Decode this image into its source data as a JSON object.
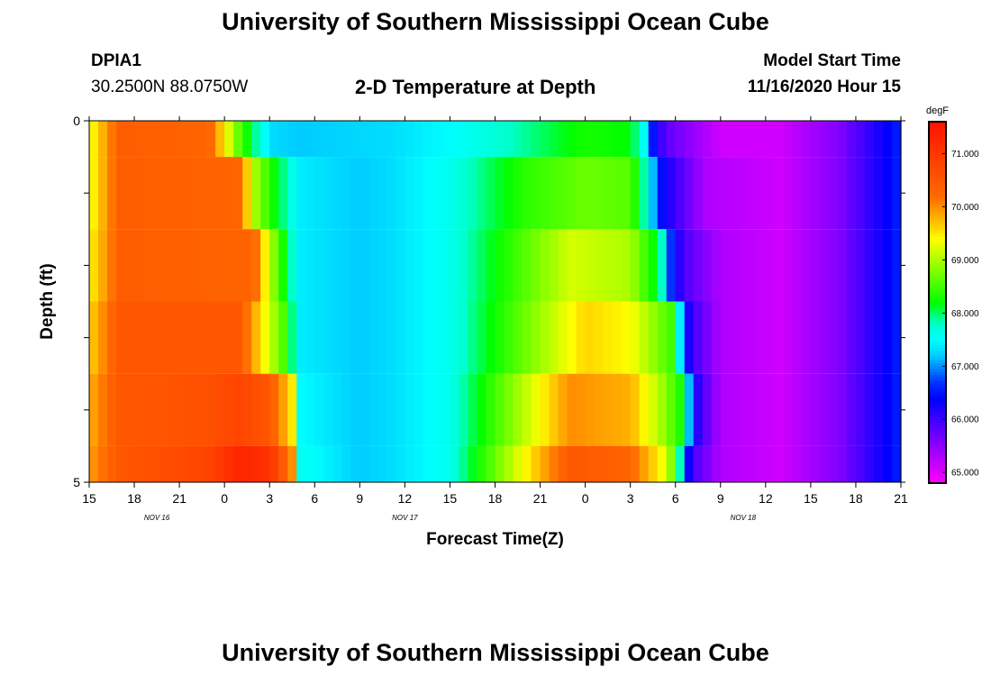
{
  "header": {
    "title_top": "University of Southern Mississippi Ocean Cube",
    "station_id": "DPIA1",
    "coords": "30.2500N 88.0750W",
    "subtitle": "2-D Temperature at Depth",
    "model_label": "Model Start Time",
    "model_time": "11/16/2020 Hour 15",
    "title_bottom": "University of Southern Mississippi Ocean Cube"
  },
  "chart_data": {
    "type": "heatmap",
    "title": "2-D Temperature at Depth",
    "xlabel": "Forecast Time(Z)",
    "ylabel": "Depth (ft)",
    "x_tick_labels": [
      "15",
      "18",
      "21",
      "0",
      "3",
      "6",
      "9",
      "12",
      "15",
      "18",
      "21",
      "0",
      "3",
      "6",
      "9",
      "12",
      "15",
      "18",
      "21"
    ],
    "date_labels": [
      "NOV 16",
      "NOV 17",
      "NOV 18"
    ],
    "x_range_hours": [
      0,
      54
    ],
    "y_range_ft": [
      0,
      5
    ],
    "y_tick_labels": [
      "0",
      "5"
    ],
    "colorbar": {
      "unit": "degF",
      "min": 64.8,
      "max": 71.6,
      "tick_labels": [
        "71.000",
        "70.000",
        "69.000",
        "68.000",
        "67.000",
        "66.000",
        "65.000"
      ],
      "tick_values": [
        71,
        70,
        69,
        68,
        67,
        66,
        65
      ]
    },
    "depth_levels_ft": [
      0,
      0.5,
      1.5,
      2.5,
      3.5,
      4.5
    ],
    "profiles": [
      {
        "depth_ft": 0,
        "points": [
          [
            0,
            69.3
          ],
          [
            2,
            70.4
          ],
          [
            8,
            70.3
          ],
          [
            9,
            69.5
          ],
          [
            10,
            68.6
          ],
          [
            12,
            67.3
          ],
          [
            14,
            67.2
          ],
          [
            20,
            67.3
          ],
          [
            24,
            67.5
          ],
          [
            28,
            67.8
          ],
          [
            33,
            68.3
          ],
          [
            36,
            68.2
          ],
          [
            37,
            67.5
          ],
          [
            37.6,
            66.3
          ],
          [
            38.4,
            65.8
          ],
          [
            42,
            65.1
          ],
          [
            46,
            65.1
          ],
          [
            50,
            65.6
          ],
          [
            54,
            66.6
          ]
        ]
      },
      {
        "depth_ft": 0.5,
        "points": [
          [
            0,
            69.3
          ],
          [
            2,
            70.4
          ],
          [
            10,
            70.3
          ],
          [
            11,
            69.0
          ],
          [
            12,
            68.4
          ],
          [
            14,
            67.4
          ],
          [
            18,
            67.2
          ],
          [
            20,
            67.3
          ],
          [
            24,
            67.6
          ],
          [
            29,
            68.4
          ],
          [
            33,
            68.7
          ],
          [
            36,
            68.6
          ],
          [
            37,
            67.8
          ],
          [
            38,
            66.5
          ],
          [
            39,
            66.0
          ],
          [
            41,
            65.3
          ],
          [
            46,
            65.1
          ],
          [
            50,
            65.6
          ],
          [
            54,
            66.6
          ]
        ]
      },
      {
        "depth_ft": 1.5,
        "points": [
          [
            0,
            69.4
          ],
          [
            2,
            70.4
          ],
          [
            11,
            70.3
          ],
          [
            12,
            69.1
          ],
          [
            13,
            68.2
          ],
          [
            14,
            67.4
          ],
          [
            18,
            67.2
          ],
          [
            20,
            67.3
          ],
          [
            24,
            67.6
          ],
          [
            32,
            69.2
          ],
          [
            36,
            69.0
          ],
          [
            38,
            68.0
          ],
          [
            38.8,
            66.5
          ],
          [
            39.6,
            65.9
          ],
          [
            42,
            65.3
          ],
          [
            46,
            65.1
          ],
          [
            50,
            65.6
          ],
          [
            54,
            66.6
          ]
        ]
      },
      {
        "depth_ft": 2.5,
        "points": [
          [
            0,
            69.6
          ],
          [
            2,
            70.5
          ],
          [
            10,
            70.5
          ],
          [
            11.5,
            69.5
          ],
          [
            13,
            68.5
          ],
          [
            14,
            67.4
          ],
          [
            18,
            67.2
          ],
          [
            20,
            67.3
          ],
          [
            24,
            67.6
          ],
          [
            33,
            69.6
          ],
          [
            36,
            69.4
          ],
          [
            39,
            68.4
          ],
          [
            39.6,
            66.4
          ],
          [
            40.4,
            65.9
          ],
          [
            42,
            65.3
          ],
          [
            46,
            65.1
          ],
          [
            50,
            65.6
          ],
          [
            54,
            66.6
          ]
        ]
      },
      {
        "depth_ft": 3.5,
        "points": [
          [
            0,
            69.8
          ],
          [
            2,
            70.5
          ],
          [
            8,
            70.6
          ],
          [
            10,
            70.8
          ],
          [
            12,
            70.5
          ],
          [
            13.5,
            69.5
          ],
          [
            14,
            67.5
          ],
          [
            18,
            67.2
          ],
          [
            20,
            67.3
          ],
          [
            24,
            67.6
          ],
          [
            32,
            70.0
          ],
          [
            36,
            69.8
          ],
          [
            38,
            69.0
          ],
          [
            39.6,
            68.2
          ],
          [
            40,
            66.8
          ],
          [
            40.6,
            66.0
          ],
          [
            42,
            65.3
          ],
          [
            46,
            65.1
          ],
          [
            50,
            65.6
          ],
          [
            54,
            66.6
          ]
        ]
      },
      {
        "depth_ft": 4.5,
        "points": [
          [
            0,
            69.9
          ],
          [
            2,
            70.5
          ],
          [
            8,
            70.8
          ],
          [
            10,
            71.3
          ],
          [
            12,
            71.1
          ],
          [
            13.5,
            70.0
          ],
          [
            14,
            67.6
          ],
          [
            18,
            67.2
          ],
          [
            20,
            67.3
          ],
          [
            24,
            67.6
          ],
          [
            32,
            70.5
          ],
          [
            36,
            70.3
          ],
          [
            38.5,
            69.2
          ],
          [
            39.5,
            67.5
          ],
          [
            40,
            66.0
          ],
          [
            42,
            65.3
          ],
          [
            46,
            65.1
          ],
          [
            50,
            65.6
          ],
          [
            54,
            66.6
          ]
        ]
      }
    ]
  }
}
